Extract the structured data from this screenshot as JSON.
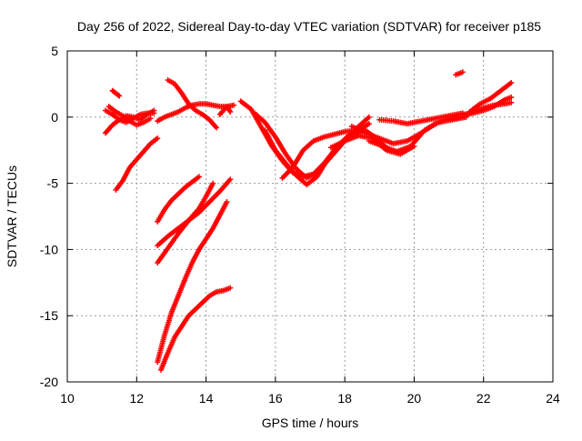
{
  "chart_data": {
    "type": "scatter",
    "title": "Day 256 of 2022, Sidereal Day-to-day VTEC variation (SDTVAR) for receiver p185",
    "xlabel": "GPS time / hours",
    "ylabel": "SDTVAR / TECUs",
    "xlim": [
      10,
      24
    ],
    "ylim": [
      -20,
      5
    ],
    "xticks": [
      10,
      12,
      14,
      16,
      18,
      20,
      22,
      24
    ],
    "yticks": [
      5,
      0,
      -5,
      -10,
      -15,
      -20
    ],
    "grid": true,
    "marker": "plus",
    "color": "#ff0000",
    "series": [
      {
        "x": [
          11.1,
          11.3,
          11.5,
          11.7,
          11.9,
          12.1,
          12.3,
          12.5
        ],
        "y": [
          -1.2,
          -0.6,
          -0.2,
          0.1,
          0.0,
          -0.2,
          0.2,
          0.5
        ]
      },
      {
        "x": [
          11.1,
          11.3,
          11.5,
          11.7,
          11.9,
          12.1,
          12.3,
          12.5
        ],
        "y": [
          0.5,
          0.2,
          -0.2,
          -0.4,
          -0.1,
          0.2,
          0.3,
          0.3
        ]
      },
      {
        "x": [
          11.2,
          11.4,
          11.6,
          11.8,
          12.0,
          12.2,
          12.4
        ],
        "y": [
          0.8,
          0.4,
          0.1,
          -0.3,
          -0.6,
          -0.4,
          -0.1
        ]
      },
      {
        "x": [
          11.3,
          11.4,
          11.5
        ],
        "y": [
          2.0,
          1.8,
          1.6
        ]
      },
      {
        "x": [
          11.4,
          11.6,
          11.8,
          12.0,
          12.2,
          12.4,
          12.6
        ],
        "y": [
          -5.5,
          -4.8,
          -3.8,
          -3.2,
          -2.6,
          -2.0,
          -1.6
        ]
      },
      {
        "x": [
          12.6,
          12.8,
          13.0,
          13.2,
          13.4,
          13.6,
          13.8,
          14.0,
          14.2,
          14.4,
          14.6,
          14.8
        ],
        "y": [
          -0.3,
          0.0,
          0.2,
          0.4,
          0.7,
          0.9,
          1.0,
          1.0,
          0.9,
          0.8,
          0.8,
          0.9
        ]
      },
      {
        "x": [
          12.9,
          13.1,
          13.3,
          13.5,
          13.7,
          13.9,
          14.1,
          14.3
        ],
        "y": [
          2.8,
          2.5,
          1.8,
          1.0,
          0.5,
          0.2,
          -0.2,
          -0.8
        ]
      },
      {
        "x": [
          14.4,
          14.6,
          14.7
        ],
        "y": [
          0.2,
          0.8,
          0.4
        ]
      },
      {
        "x": [
          12.6,
          12.8,
          13.0,
          13.2,
          13.4,
          13.6,
          13.8
        ],
        "y": [
          -7.9,
          -7.0,
          -6.3,
          -5.8,
          -5.3,
          -4.9,
          -4.5
        ]
      },
      {
        "x": [
          12.6,
          12.9,
          13.2,
          13.5,
          13.8,
          14.1,
          14.4,
          14.7
        ],
        "y": [
          -9.7,
          -9.0,
          -8.4,
          -7.8,
          -7.2,
          -6.4,
          -5.6,
          -4.7
        ]
      },
      {
        "x": [
          12.6,
          12.9,
          13.2,
          13.5,
          13.8,
          14.0,
          14.2
        ],
        "y": [
          -11.0,
          -9.9,
          -8.8,
          -7.8,
          -6.9,
          -6.0,
          -5.0
        ]
      },
      {
        "x": [
          12.6,
          12.8,
          13.0,
          13.2,
          13.4,
          13.6,
          13.8,
          14.0,
          14.2,
          14.4,
          14.6
        ],
        "y": [
          -18.5,
          -16.5,
          -14.8,
          -13.5,
          -12.2,
          -11.0,
          -10.0,
          -9.2,
          -8.4,
          -7.4,
          -6.4
        ]
      },
      {
        "x": [
          12.7,
          12.9,
          13.1,
          13.3,
          13.5,
          13.7,
          13.9,
          14.1,
          14.3,
          14.5,
          14.7
        ],
        "y": [
          -19.1,
          -17.8,
          -16.6,
          -15.8,
          -15.0,
          -14.5,
          -14.0,
          -13.5,
          -13.2,
          -13.1,
          -12.9
        ]
      },
      {
        "x": [
          15.0,
          15.3,
          15.6,
          15.9,
          16.2,
          16.5,
          16.8,
          17.1,
          17.4,
          17.7,
          18.0,
          18.3,
          18.6,
          18.9,
          19.2
        ],
        "y": [
          1.2,
          0.6,
          -0.8,
          -2.2,
          -3.3,
          -4.2,
          -4.5,
          -4.3,
          -3.5,
          -2.5,
          -1.8,
          -1.3,
          -1.0,
          -1.6,
          -2.3
        ]
      },
      {
        "x": [
          15.4,
          15.7,
          16.0,
          16.3,
          16.6,
          16.9,
          17.2,
          17.5,
          17.8,
          18.1,
          18.4,
          18.7
        ],
        "y": [
          0.3,
          -0.4,
          -1.5,
          -2.8,
          -3.9,
          -4.6,
          -4.2,
          -3.3,
          -2.4,
          -1.5,
          -0.7,
          0.0
        ]
      },
      {
        "x": [
          15.7,
          16.0,
          16.3,
          16.6,
          16.9,
          17.2,
          17.5,
          17.8,
          18.1,
          18.4,
          18.7
        ],
        "y": [
          -1.0,
          -2.5,
          -3.5,
          -4.4,
          -5.1,
          -4.5,
          -3.2,
          -2.2,
          -1.4,
          -1.0,
          -0.5
        ]
      },
      {
        "x": [
          16.2,
          16.5,
          16.8,
          17.1,
          17.4,
          17.7,
          18.0,
          18.3
        ],
        "y": [
          -4.6,
          -3.8,
          -2.5,
          -1.8,
          -1.5,
          -1.3,
          -1.1,
          -1.0
        ]
      },
      {
        "x": [
          17.6,
          18.0,
          18.4,
          18.8,
          19.2,
          19.6,
          20.0
        ],
        "y": [
          -2.3,
          -1.8,
          -1.4,
          -1.6,
          -2.5,
          -2.8,
          -2.2
        ]
      },
      {
        "x": [
          18.2,
          18.6,
          19.0,
          19.4,
          19.8,
          20.2,
          20.6,
          21.0,
          21.4
        ],
        "y": [
          -0.7,
          -1.2,
          -1.6,
          -2.0,
          -1.8,
          -1.2,
          -0.5,
          -0.1,
          0.0
        ]
      },
      {
        "x": [
          19.0,
          19.4,
          19.8,
          20.2,
          20.6,
          21.0,
          21.4
        ],
        "y": [
          -0.2,
          -0.3,
          -0.5,
          -0.3,
          -0.1,
          0.1,
          0.3
        ]
      },
      {
        "x": [
          18.7,
          19.1,
          19.5,
          19.9,
          20.3,
          20.7,
          21.1,
          21.5
        ],
        "y": [
          -1.8,
          -2.2,
          -2.6,
          -2.2,
          -1.0,
          -0.4,
          -0.2,
          0.0
        ]
      },
      {
        "x": [
          21.2,
          21.4
        ],
        "y": [
          3.2,
          3.4
        ]
      },
      {
        "x": [
          21.4,
          21.7,
          22.0,
          22.3,
          22.6,
          22.8
        ],
        "y": [
          0.0,
          0.4,
          0.7,
          0.9,
          1.0,
          1.1
        ]
      },
      {
        "x": [
          21.6,
          21.9,
          22.2,
          22.5,
          22.8
        ],
        "y": [
          0.4,
          1.0,
          1.4,
          2.0,
          2.6
        ]
      },
      {
        "x": [
          21.4,
          21.7,
          22.0,
          22.3,
          22.6,
          22.8
        ],
        "y": [
          0.2,
          0.3,
          0.5,
          0.8,
          1.3,
          1.5
        ]
      }
    ]
  }
}
